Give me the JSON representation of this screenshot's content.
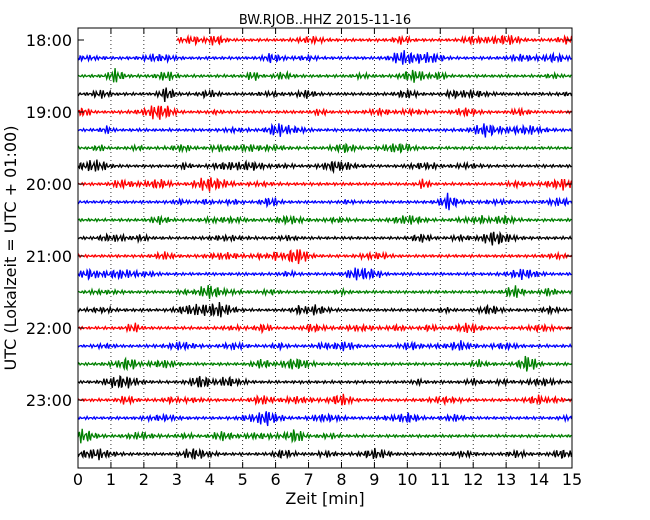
{
  "chart_data": {
    "type": "line",
    "title": "BW.RJOB..HHZ 2015-11-16",
    "xlabel": "Zeit  [min]",
    "ylabel": "UTC (Lokalzeit = UTC + 01:00)",
    "xlim": [
      0,
      15
    ],
    "x_ticks": [
      "0",
      "1",
      "2",
      "3",
      "4",
      "5",
      "6",
      "7",
      "8",
      "9",
      "10",
      "11",
      "12",
      "13",
      "14",
      "15"
    ],
    "y_ticks": [
      "18:00",
      "19:00",
      "20:00",
      "21:00",
      "22:00",
      "23:00"
    ],
    "grid": "vertical dotted lines at each minute",
    "trace_start_times": [
      "18:00",
      "18:15",
      "18:30",
      "18:45",
      "19:00",
      "19:15",
      "19:30",
      "19:45",
      "20:00",
      "20:15",
      "20:30",
      "20:45",
      "21:00",
      "21:15",
      "21:30",
      "21:45",
      "22:00",
      "22:15",
      "22:30",
      "22:45",
      "23:00",
      "23:15",
      "23:30",
      "23:45"
    ],
    "trace_colors": [
      "#ff0000",
      "#0000ff",
      "#008000",
      "#000000"
    ],
    "first_trace_start_min": 3.0
  }
}
